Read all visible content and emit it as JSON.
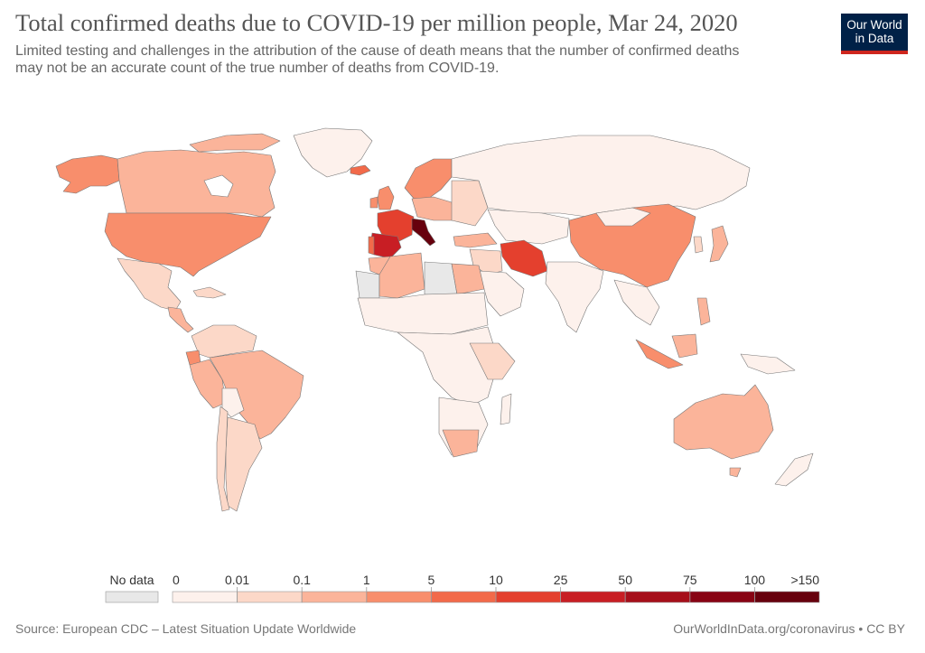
{
  "header": {
    "title": "Total confirmed deaths due to COVID-19 per million people, Mar 24, 2020",
    "subtitle_line1": "Limited testing and challenges in the attribution of the cause of death means that the number of confirmed deaths",
    "subtitle_line2": "may not be an accurate count of the true number of deaths from COVID-19."
  },
  "logo": {
    "line1": "Our World",
    "line2": "in Data",
    "bg_color": "#002147",
    "accent_color": "#ce261e"
  },
  "legend": {
    "no_data_label": "No data",
    "no_data_color": "#e8e8e8",
    "breakpoints": [
      "0",
      "0.01",
      "0.1",
      "1",
      "5",
      "10",
      "25",
      "50",
      "75",
      "100",
      ">150"
    ],
    "colors": [
      "#fdf1ec",
      "#fcd8c8",
      "#fbb49a",
      "#f88e6c",
      "#f26a4a",
      "#e4402e",
      "#c81e24",
      "#a60f1a",
      "#880414",
      "#67000d"
    ]
  },
  "map_data": {
    "type": "choropleth",
    "metric": "Total confirmed deaths due to COVID-19 per million people",
    "date": "Mar 24, 2020",
    "regions": [
      {
        "name": "Canada",
        "bin": 2
      },
      {
        "name": "United States",
        "bin": 3
      },
      {
        "name": "Alaska",
        "bin": 3
      },
      {
        "name": "Mexico",
        "bin": 1
      },
      {
        "name": "Panama",
        "bin": 4
      },
      {
        "name": "Brazil",
        "bin": 2
      },
      {
        "name": "Ecuador",
        "bin": 3
      },
      {
        "name": "Argentina",
        "bin": 1
      },
      {
        "name": "Chile",
        "bin": 1
      },
      {
        "name": "Greenland",
        "bin": 0
      },
      {
        "name": "Iceland",
        "bin": 4
      },
      {
        "name": "Spain",
        "bin": 7
      },
      {
        "name": "France",
        "bin": 5
      },
      {
        "name": "Italy",
        "bin": 9
      },
      {
        "name": "Scandinavia",
        "bin": 3
      },
      {
        "name": "Russia",
        "bin": 0
      },
      {
        "name": "Iran",
        "bin": 5
      },
      {
        "name": "China",
        "bin": 3
      },
      {
        "name": "Japan",
        "bin": 2
      },
      {
        "name": "India",
        "bin": 0
      },
      {
        "name": "Australia",
        "bin": 2
      },
      {
        "name": "Algeria",
        "bin": 2
      },
      {
        "name": "Libya",
        "bin": -1
      },
      {
        "name": "Western Sahara",
        "bin": -1
      }
    ]
  },
  "footer": {
    "source": "Source: European CDC – Latest Situation Update Worldwide",
    "credit": "OurWorldInData.org/coronavirus • CC BY"
  }
}
